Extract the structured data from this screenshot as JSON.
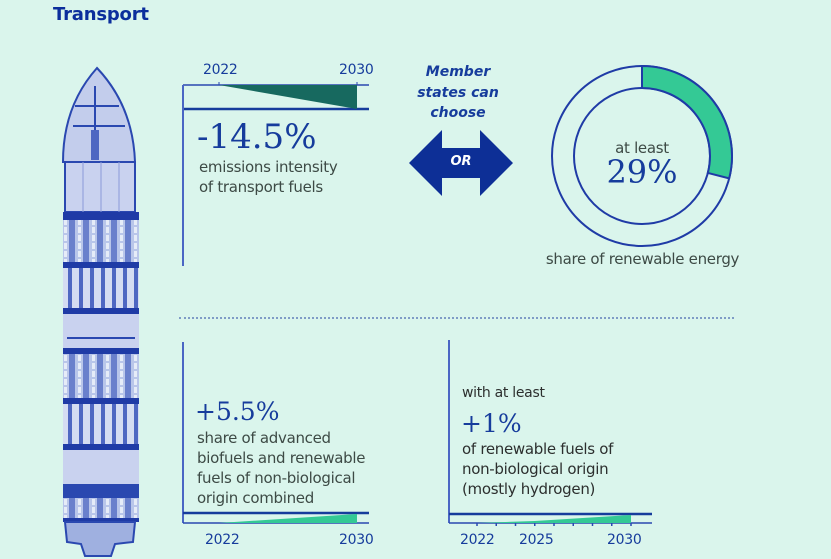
{
  "title": "Transport",
  "colors": {
    "background": "#daf5ec",
    "primary_blue": "#163c9c",
    "dark_teal": "#17695f",
    "green": "#34c995",
    "text_gray": "#3d4a45"
  },
  "illustration": {
    "icon": "container-ship-icon",
    "description": "Top view of container ship"
  },
  "option_a": {
    "timeline": {
      "start_label": "2022",
      "end_label": "2030"
    },
    "value": "-14.5%",
    "description_lines": [
      "emissions intensity",
      "of transport fuels"
    ]
  },
  "chooser": {
    "lines": [
      "Member",
      "states can",
      "choose"
    ],
    "arrow_label": "OR",
    "icon": "double-arrow-icon"
  },
  "option_b": {
    "donut_prefix": "at least",
    "value": "29%",
    "caption": "share of renewable energy"
  },
  "sub_target_1": {
    "value": "+5.5%",
    "description_lines": [
      "share of advanced",
      "biofuels and renewable",
      "fuels of non-biological",
      "origin combined"
    ],
    "timeline": {
      "start_label": "2022",
      "end_label": "2030"
    }
  },
  "sub_target_2": {
    "prefix": "with at least",
    "value": "+1%",
    "description_lines": [
      "of renewable fuels of",
      "non-biological origin",
      "(mostly hydrogen)"
    ],
    "timeline": {
      "labels": [
        "2022",
        "2025",
        "2030"
      ]
    }
  },
  "chart_data": [
    {
      "type": "area",
      "title": "Emissions intensity reduction of transport fuels",
      "x": [
        2022,
        2030
      ],
      "values": [
        0,
        -14.5
      ],
      "unit": "%",
      "tick_labels": [
        "2022",
        "2030"
      ]
    },
    {
      "type": "pie",
      "title": "Share of renewable energy",
      "categories": [
        "renewable",
        "other"
      ],
      "values": [
        29,
        71
      ],
      "unit": "%"
    },
    {
      "type": "area",
      "title": "Share of advanced biofuels and RFNBO combined",
      "x": [
        2022,
        2030
      ],
      "values": [
        0,
        5.5
      ],
      "unit": "%",
      "tick_labels": [
        "2022",
        "2030"
      ]
    },
    {
      "type": "area",
      "title": "Renewable fuels of non-biological origin",
      "x": [
        2022,
        2025,
        2030
      ],
      "values": [
        0,
        0,
        1
      ],
      "unit": "%",
      "tick_labels": [
        "2022",
        "2025",
        "2030"
      ]
    }
  ]
}
